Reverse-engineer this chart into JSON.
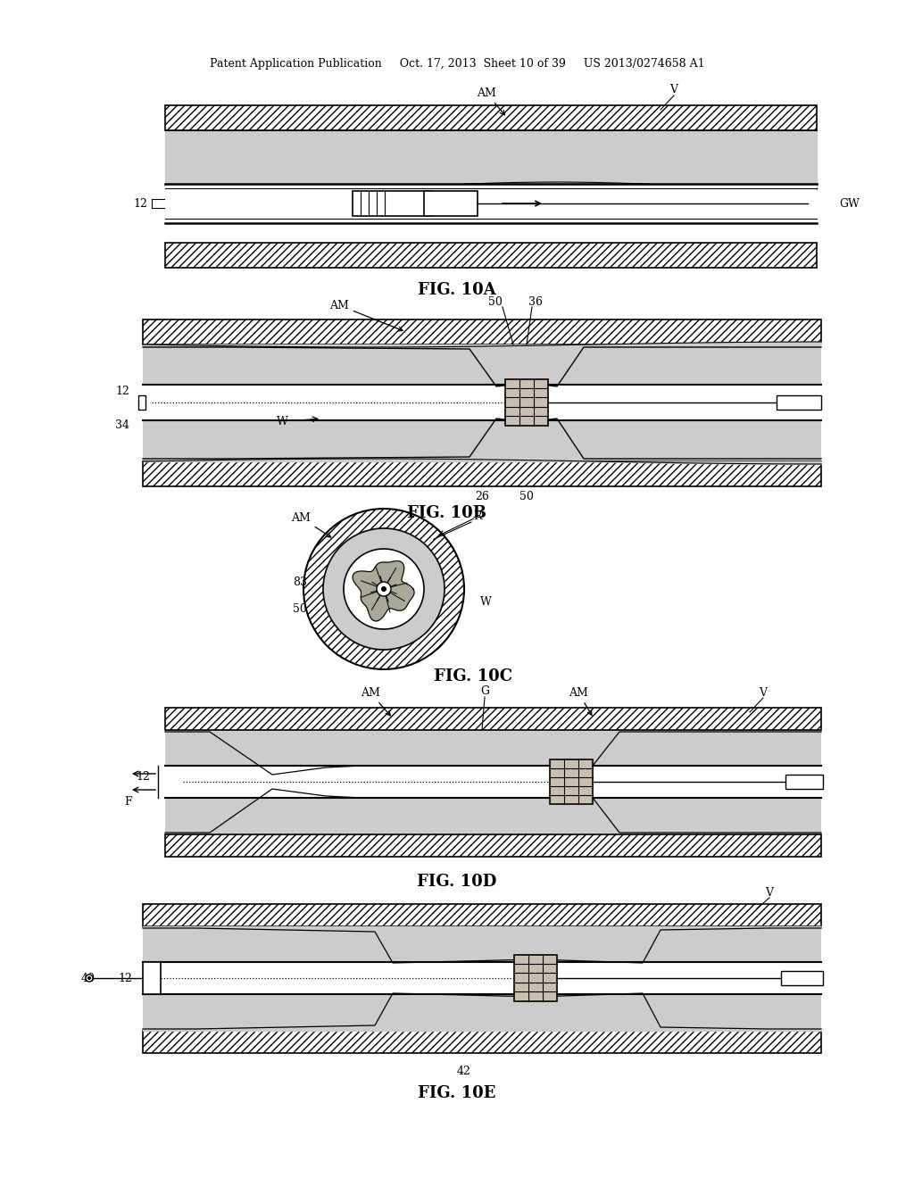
{
  "bg_color": "#ffffff",
  "header": "Patent Application Publication     Oct. 17, 2013  Sheet 10 of 39     US 2013/0274658 A1",
  "fig_labels": [
    "FIG. 10A",
    "FIG. 10B",
    "FIG. 10C",
    "FIG. 10D",
    "FIG. 10E"
  ],
  "hatch": "////",
  "gray_plaque": "#cccccc",
  "gray_light": "#e8e8e8",
  "device_color": "#b8b0a0",
  "device_dark": "#888070"
}
